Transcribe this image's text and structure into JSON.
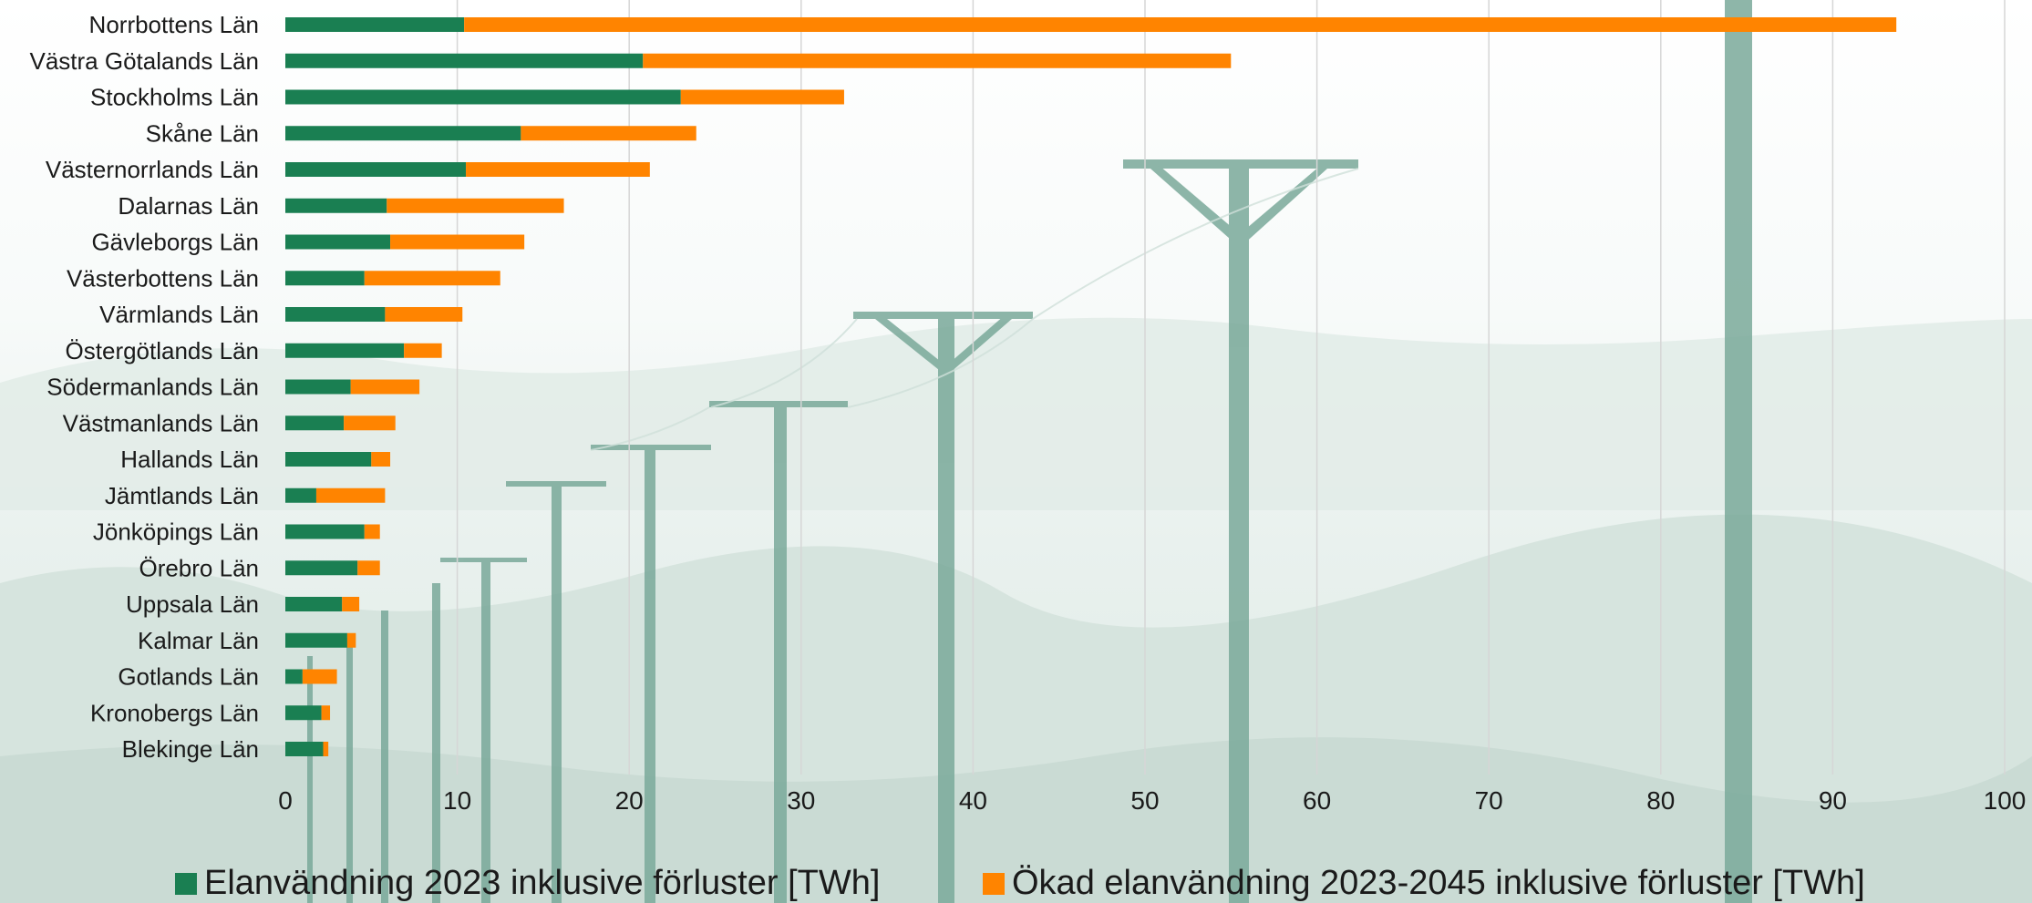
{
  "colors": {
    "series_1": "#1a7f52",
    "series_2": "#ff8400",
    "grid": "#d6d6d6",
    "background_mist": "#e4ede9",
    "pole": "#7aa99a"
  },
  "chart_data": {
    "type": "bar",
    "orientation": "horizontal",
    "stacked": true,
    "categories": [
      "Norrbottens Län",
      "Västra Götalands Län",
      "Stockholms Län",
      "Skåne Län",
      "Västernorrlands Län",
      "Dalarnas Län",
      "Gävleborgs Län",
      "Västerbottens Län",
      "Värmlands Län",
      "Östergötlands Län",
      "Södermanlands Län",
      "Västmanlands Län",
      "Hallands Län",
      "Jämtlands Län",
      "Jönköpings Län",
      "Örebro Län",
      "Uppsala Län",
      "Kalmar Län",
      "Gotlands Län",
      "Kronobergs Län",
      "Blekinge Län"
    ],
    "series": [
      {
        "name": "Elanvändning 2023 inklusive förluster [TWh]",
        "values": [
          10.4,
          20.8,
          23.0,
          13.7,
          10.5,
          5.9,
          6.1,
          4.6,
          5.8,
          6.9,
          3.8,
          3.4,
          5.0,
          1.8,
          4.6,
          4.2,
          3.3,
          3.6,
          1.0,
          2.1,
          2.2
        ]
      },
      {
        "name": "Ökad elanvändning 2023-2045 inklusive förluster [TWh]",
        "values": [
          83.3,
          34.2,
          9.5,
          10.2,
          10.7,
          10.3,
          7.8,
          7.9,
          4.5,
          2.2,
          4.0,
          3.0,
          1.1,
          4.0,
          0.9,
          1.3,
          1.0,
          0.5,
          2.0,
          0.5,
          0.3
        ]
      }
    ],
    "xlim": [
      0,
      100
    ],
    "xticks": [
      "0",
      "10",
      "20",
      "30",
      "40",
      "50",
      "60",
      "70",
      "80",
      "90",
      "100"
    ],
    "grid": "vertical",
    "legend": "bottom"
  }
}
